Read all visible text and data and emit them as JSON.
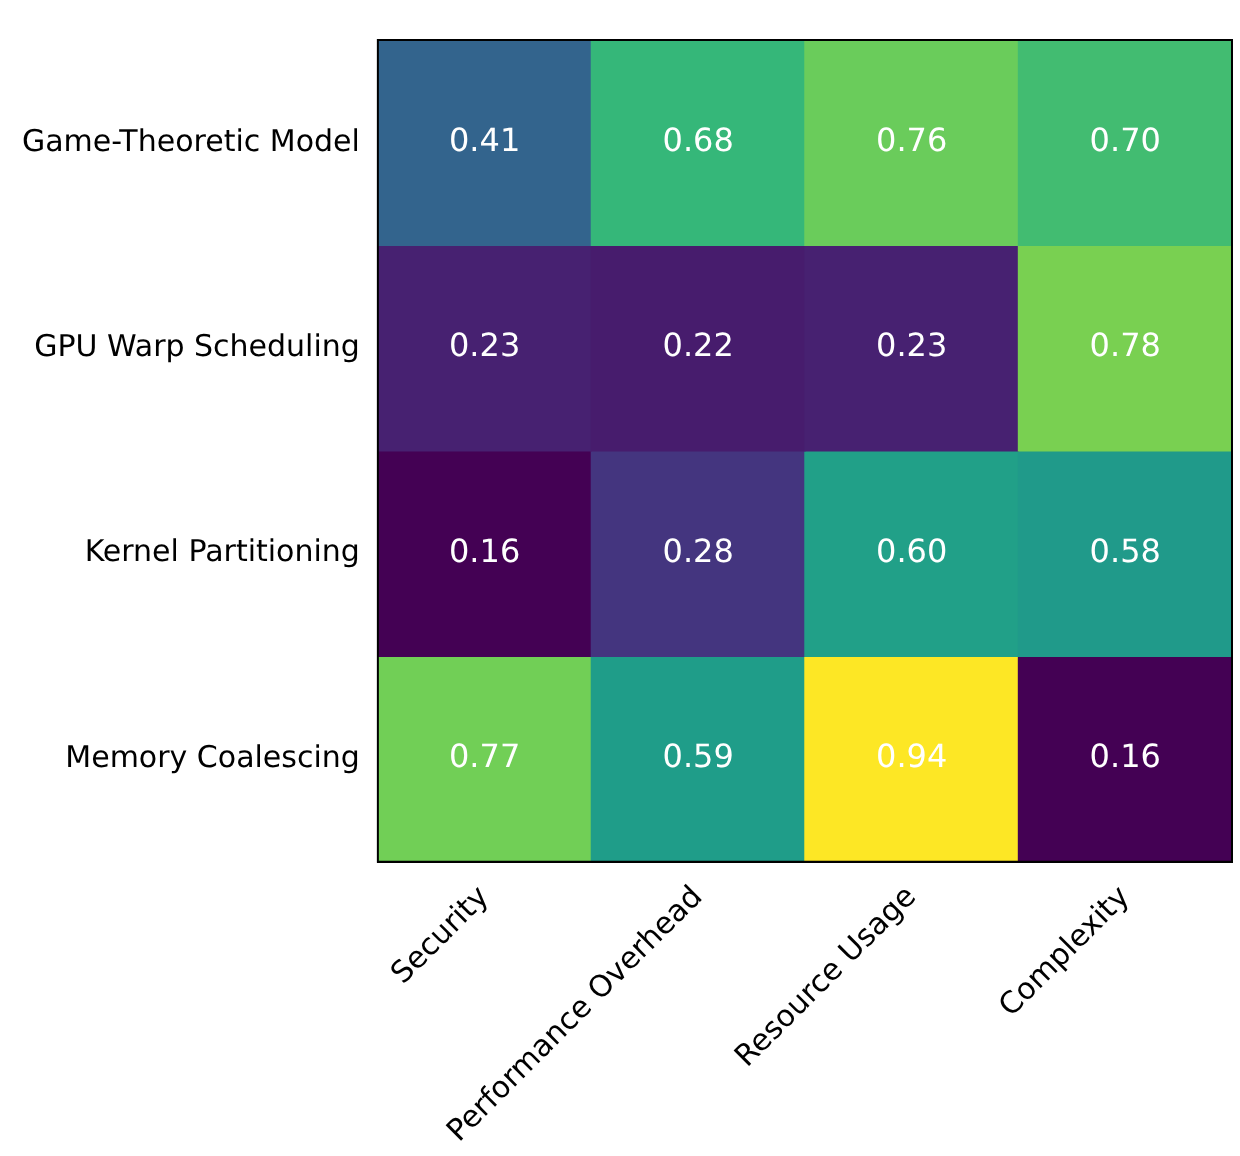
{
  "chart_data": {
    "type": "heatmap",
    "categories": [
      "Security",
      "Performance Overhead",
      "Resource Usage",
      "Complexity"
    ],
    "y_categories": [
      "Game-Theoretic Model",
      "GPU Warp Scheduling",
      "Kernel Partitioning",
      "Memory Coalescing"
    ],
    "cells": [
      [
        0.41,
        0.68,
        0.76,
        0.7
      ],
      [
        0.23,
        0.22,
        0.23,
        0.78
      ],
      [
        0.16,
        0.28,
        0.6,
        0.58
      ],
      [
        0.77,
        0.59,
        0.94,
        0.16
      ]
    ],
    "cell_labels": [
      [
        "0.41",
        "0.68",
        "0.76",
        "0.70"
      ],
      [
        "0.23",
        "0.22",
        "0.23",
        "0.78"
      ],
      [
        "0.16",
        "0.28",
        "0.60",
        "0.58"
      ],
      [
        "0.77",
        "0.59",
        "0.94",
        "0.16"
      ]
    ],
    "data_labels": true,
    "grid": false,
    "legend": false
  }
}
